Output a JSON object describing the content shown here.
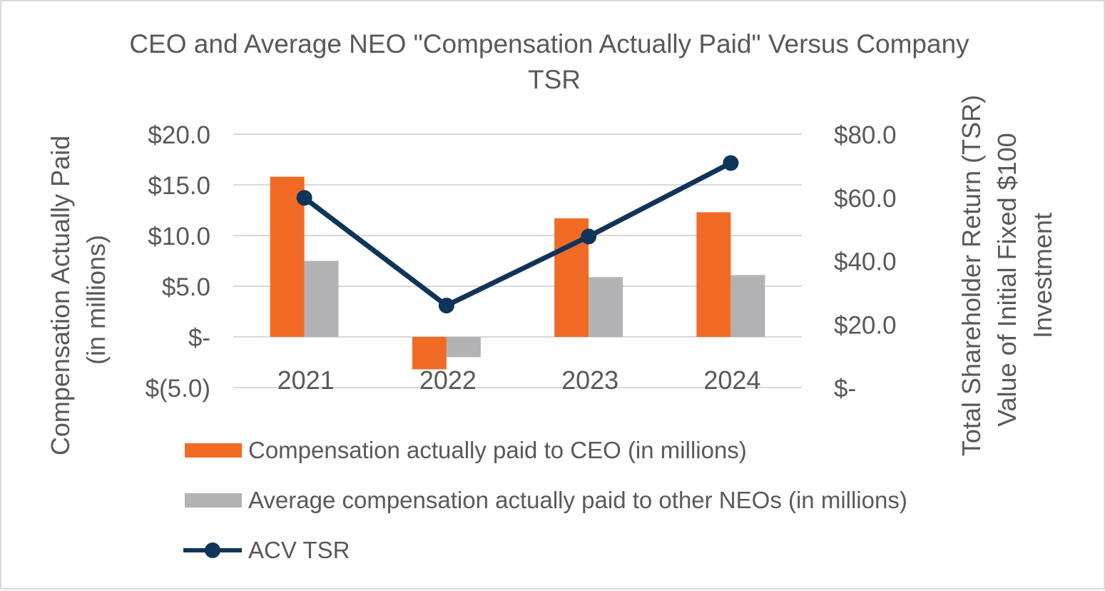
{
  "chart_data": {
    "type": "bar",
    "title": "CEO and Average NEO \"Compensation Actually Paid\" Versus  Company TSR",
    "title_lines": [
      "CEO and Average NEO \"Compensation Actually Paid\" Versus  Company",
      "TSR"
    ],
    "categories": [
      "2021",
      "2022",
      "2023",
      "2024"
    ],
    "series": [
      {
        "name": "Compensation actually paid to CEO (in millions)",
        "type": "bar",
        "axis": "left",
        "color": "#f26b26",
        "values": [
          15.8,
          -3.2,
          11.7,
          12.3
        ]
      },
      {
        "name": "Average compensation actually paid to other NEOs (in millions)",
        "type": "bar",
        "axis": "left",
        "color": "#b3b3b6",
        "values": [
          7.5,
          -2.0,
          5.9,
          6.1
        ]
      },
      {
        "name": "ACV TSR",
        "type": "line",
        "axis": "right",
        "color": "#0e3558",
        "values": [
          59.9,
          25.9,
          47.7,
          70.9
        ]
      }
    ],
    "ylabel_lines": [
      "Compensation Actually Paid",
      "(in millions)"
    ],
    "y2label_lines": [
      "Total Shareholder Return (TSR)",
      "Value of Initial Fixed $100",
      "Investment"
    ],
    "ylim": [
      -5,
      20
    ],
    "y2lim": [
      0,
      80
    ],
    "yticks": [
      {
        "value": 20,
        "label": "$20.0"
      },
      {
        "value": 15,
        "label": "$15.0"
      },
      {
        "value": 10,
        "label": "$10.0"
      },
      {
        "value": 5,
        "label": "$5.0"
      },
      {
        "value": 0,
        "label": "$-"
      },
      {
        "value": -5,
        "label": "$(5.0)"
      }
    ],
    "y2ticks": [
      {
        "value": 80,
        "label": "$80.0"
      },
      {
        "value": 60,
        "label": "$60.0"
      },
      {
        "value": 40,
        "label": "$40.0"
      },
      {
        "value": 20,
        "label": "$20.0"
      },
      {
        "value": 0,
        "label": "$-"
      }
    ],
    "grid": true,
    "legend": "bottom"
  }
}
